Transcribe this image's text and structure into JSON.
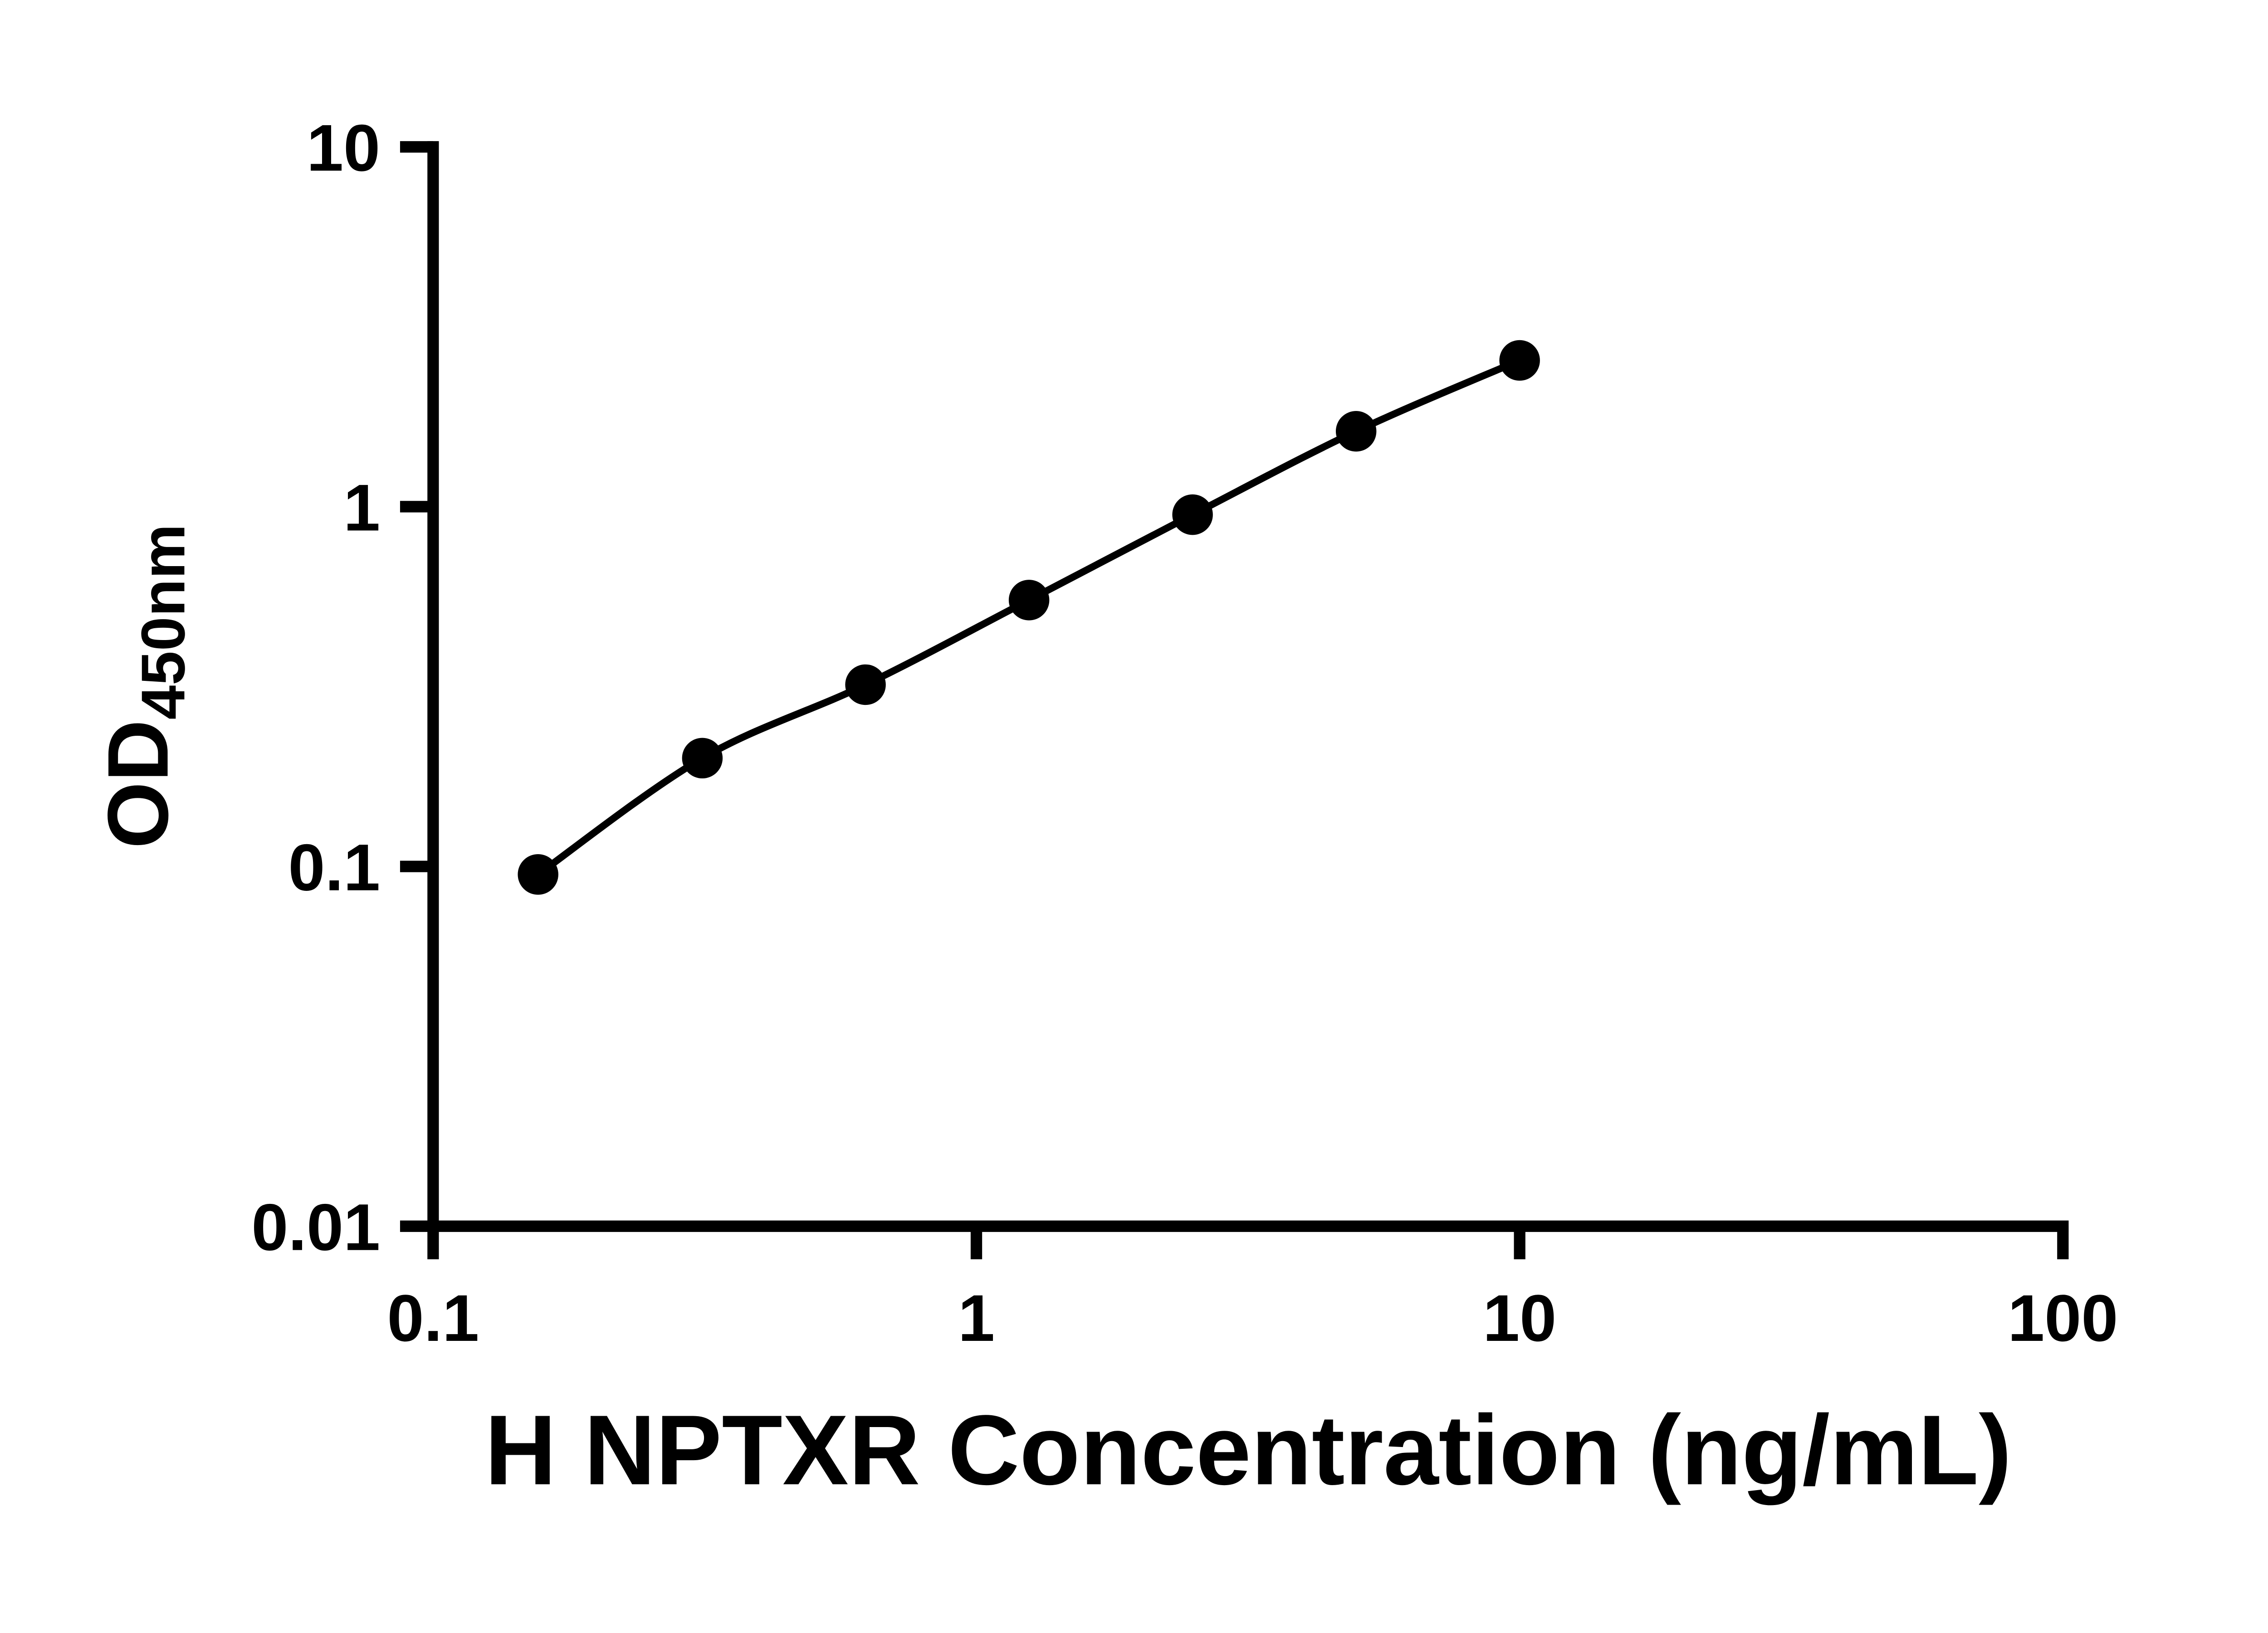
{
  "figure": {
    "background": "#ffffff"
  },
  "chart_data": {
    "type": "scatter",
    "subtype": "elisa-standard-curve",
    "title": "",
    "xlabel": "H NPTXR Concentration (ng/mL)",
    "ylabel_main": "OD",
    "ylabel_sub": "450nm",
    "x_scale": "log10",
    "y_scale": "log10",
    "xlim": [
      0.1,
      100
    ],
    "ylim": [
      0.01,
      10
    ],
    "x_ticks": [
      {
        "value": 0.1,
        "label": "0.1"
      },
      {
        "value": 1,
        "label": "1"
      },
      {
        "value": 10,
        "label": "10"
      },
      {
        "value": 100,
        "label": "100"
      }
    ],
    "y_ticks": [
      {
        "value": 0.01,
        "label": "0.01"
      },
      {
        "value": 0.1,
        "label": "0.1"
      },
      {
        "value": 1,
        "label": "1"
      },
      {
        "value": 10,
        "label": "10"
      }
    ],
    "grid": false,
    "legend": "none",
    "curve_style": "smooth",
    "marker": {
      "shape": "filled-circle",
      "color": "#000000"
    },
    "line_color": "#000000",
    "axis_color": "#000000",
    "series": [
      {
        "x": [
          0.156,
          0.313,
          0.625,
          1.25,
          2.5,
          5,
          10
        ],
        "y": [
          0.095,
          0.2,
          0.32,
          0.55,
          0.95,
          1.62,
          2.55
        ]
      }
    ]
  }
}
